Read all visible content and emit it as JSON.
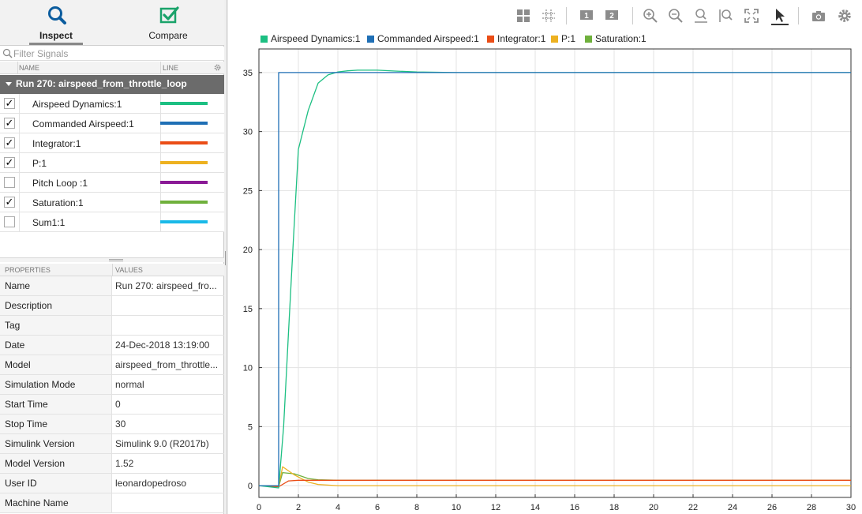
{
  "modes": {
    "inspect_label": "Inspect",
    "compare_label": "Compare"
  },
  "filter": {
    "placeholder": "Filter Signals"
  },
  "signal_table": {
    "col_name": "NAME",
    "col_line": "LINE",
    "run_label": "Run 270: airspeed_from_throttle_loop",
    "signals": [
      {
        "name": "Airspeed Dynamics:1",
        "checked": true,
        "color": "#1cbf82"
      },
      {
        "name": "Commanded Airspeed:1",
        "checked": true,
        "color": "#1f6fb5"
      },
      {
        "name": "Integrator:1",
        "checked": true,
        "color": "#ea4d16"
      },
      {
        "name": "P:1",
        "checked": true,
        "color": "#edb120"
      },
      {
        "name": "Pitch Loop :1",
        "checked": false,
        "color": "#8a1a96"
      },
      {
        "name": "Saturation:1",
        "checked": true,
        "color": "#6fb03c"
      },
      {
        "name": "Sum1:1",
        "checked": false,
        "color": "#19b9e8"
      }
    ]
  },
  "properties": {
    "col_properties": "PROPERTIES",
    "col_values": "VALUES",
    "rows": [
      {
        "key": "Name",
        "value": "Run 270: airspeed_fro..."
      },
      {
        "key": "Description",
        "value": ""
      },
      {
        "key": "Tag",
        "value": ""
      },
      {
        "key": "Date",
        "value": "24-Dec-2018 13:19:00"
      },
      {
        "key": "Model",
        "value": "airspeed_from_throttle..."
      },
      {
        "key": "Simulation Mode",
        "value": "normal"
      },
      {
        "key": "Start Time",
        "value": "0"
      },
      {
        "key": "Stop Time",
        "value": "30"
      },
      {
        "key": "Simulink Version",
        "value": "Simulink 9.0 (R2017b)"
      },
      {
        "key": "Model Version",
        "value": "1.52"
      },
      {
        "key": "User ID",
        "value": "leonardopedroso"
      },
      {
        "key": "Machine Name",
        "value": ""
      }
    ]
  },
  "toolbar": {
    "icons": [
      "layout-grid-icon",
      "subplot-grid-icon",
      "subplot-1-icon",
      "subplot-2-icon",
      "zoom-in-icon",
      "zoom-out-icon",
      "zoom-y-icon",
      "zoom-x-icon",
      "fit-to-view-icon",
      "cursor-icon",
      "snapshot-icon",
      "settings-icon"
    ],
    "subplot1_text": "1",
    "subplot2_text": "2"
  },
  "chart_data": {
    "type": "line",
    "title": "",
    "xlabel": "",
    "ylabel": "",
    "xlim": [
      0,
      30
    ],
    "ylim": [
      -1,
      37
    ],
    "xticks": [
      0,
      2,
      4,
      6,
      8,
      10,
      12,
      14,
      16,
      18,
      20,
      22,
      24,
      26,
      28,
      30
    ],
    "yticks": [
      0,
      5,
      10,
      15,
      20,
      25,
      30,
      35
    ],
    "grid": true,
    "legend_position": "top",
    "series": [
      {
        "name": "Airspeed Dynamics:1",
        "color": "#1cbf82",
        "x": [
          0,
          1,
          1.25,
          1.5,
          1.75,
          2,
          2.5,
          3,
          3.5,
          4,
          4.5,
          5,
          6,
          7,
          8,
          10,
          12,
          30
        ],
        "y": [
          0,
          -0.2,
          5,
          13,
          21,
          28.5,
          31.8,
          34.1,
          34.8,
          35.05,
          35.15,
          35.2,
          35.2,
          35.12,
          35.05,
          35.0,
          35.0,
          35.0
        ]
      },
      {
        "name": "Commanded Airspeed:1",
        "color": "#1f6fb5",
        "x": [
          0,
          1,
          1,
          30
        ],
        "y": [
          0,
          0,
          35,
          35
        ]
      },
      {
        "name": "Integrator:1",
        "color": "#ea4d16",
        "x": [
          0,
          1,
          1.5,
          2,
          2.5,
          3,
          4,
          30
        ],
        "y": [
          0,
          -0.1,
          0.4,
          0.45,
          0.45,
          0.45,
          0.45,
          0.45
        ]
      },
      {
        "name": "P:1",
        "color": "#edb120",
        "x": [
          0,
          1,
          1.2,
          1.8,
          2.5,
          3,
          4,
          6,
          30
        ],
        "y": [
          0,
          -0.1,
          1.6,
          0.9,
          0.3,
          0.1,
          0.0,
          0.0,
          0.0
        ]
      },
      {
        "name": "Saturation:1",
        "color": "#6fb03c",
        "x": [
          0,
          1,
          1.2,
          1.8,
          2.5,
          3,
          4,
          30
        ],
        "y": [
          0,
          -0.1,
          1.1,
          1.0,
          0.6,
          0.5,
          0.45,
          0.45
        ]
      }
    ]
  }
}
